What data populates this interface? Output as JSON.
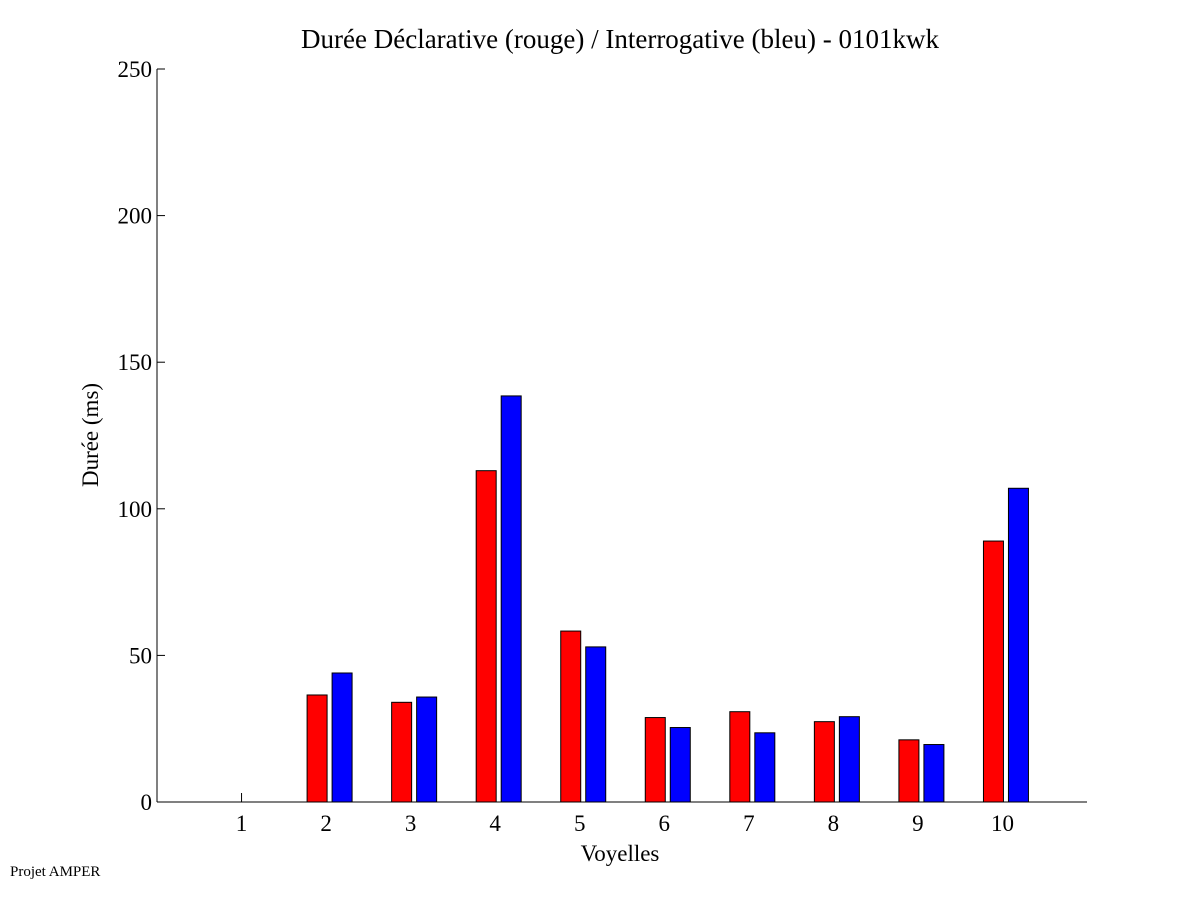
{
  "footer": "Projet AMPER",
  "colors": {
    "declarative": "#ff0000",
    "interrogative": "#0000ff"
  },
  "chart_data": {
    "type": "bar",
    "title": "Durée Déclarative (rouge) / Interrogative (bleu) - 0101kwk",
    "xlabel": "Voyelles",
    "ylabel": "Durée (ms)",
    "ylim": [
      0,
      250
    ],
    "yticks": [
      "0",
      "50",
      "100",
      "150",
      "200",
      "250"
    ],
    "categories": [
      "1",
      "2",
      "3",
      "4",
      "5",
      "6",
      "7",
      "8",
      "9",
      "10"
    ],
    "series": [
      {
        "values": [
          0,
          36.5,
          34,
          113,
          58.3,
          28.8,
          30.8,
          27.4,
          21.2,
          89
        ]
      },
      {
        "values": [
          0,
          44,
          35.8,
          138.5,
          52.9,
          25.4,
          23.6,
          29.1,
          19.6,
          107
        ]
      }
    ],
    "grid": false
  }
}
